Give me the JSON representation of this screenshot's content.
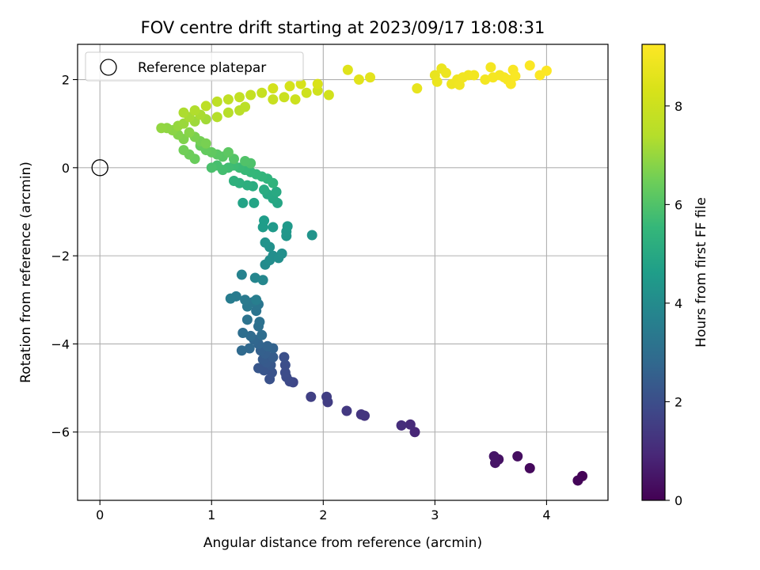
{
  "chart_data": {
    "type": "scatter",
    "title": "FOV centre drift starting at 2023/09/17 18:08:31",
    "xlabel": "Angular distance from reference (arcmin)",
    "ylabel": "Rotation from reference (arcmin)",
    "xlim": [
      -0.2,
      4.55
    ],
    "ylim": [
      -7.55,
      2.8
    ],
    "xticks": [
      0,
      1,
      2,
      3,
      4
    ],
    "yticks": [
      -6,
      -4,
      -2,
      0,
      2
    ],
    "xtick_labels": [
      "0",
      "1",
      "2",
      "3",
      "4"
    ],
    "ytick_labels": [
      "−6",
      "−4",
      "−2",
      "0",
      "2"
    ],
    "grid": true,
    "legend": {
      "location": "upper-left",
      "entries": [
        "Reference platepar"
      ]
    },
    "reference_point": {
      "x": 0,
      "y": 0,
      "label": "Reference platepar"
    },
    "colorbar": {
      "label": "Hours from first FF file",
      "colormap": "viridis",
      "range": [
        0,
        9.25
      ],
      "ticks": [
        0,
        2,
        4,
        6,
        8
      ],
      "tick_labels": [
        "0",
        "2",
        "4",
        "6",
        "8"
      ]
    },
    "points": [
      {
        "x": 4.32,
        "y": -7.0,
        "t": 0.05
      },
      {
        "x": 4.28,
        "y": -7.1,
        "t": 0.1
      },
      {
        "x": 3.85,
        "y": -6.82,
        "t": 0.2
      },
      {
        "x": 3.74,
        "y": -6.55,
        "t": 0.3
      },
      {
        "x": 3.57,
        "y": -6.62,
        "t": 0.4
      },
      {
        "x": 3.54,
        "y": -6.7,
        "t": 0.45
      },
      {
        "x": 3.53,
        "y": -6.55,
        "t": 0.5
      },
      {
        "x": 2.82,
        "y": -6.0,
        "t": 0.9
      },
      {
        "x": 2.78,
        "y": -5.83,
        "t": 1.0
      },
      {
        "x": 2.7,
        "y": -5.85,
        "t": 1.1
      },
      {
        "x": 2.37,
        "y": -5.63,
        "t": 1.25
      },
      {
        "x": 2.34,
        "y": -5.6,
        "t": 1.3
      },
      {
        "x": 2.21,
        "y": -5.52,
        "t": 1.4
      },
      {
        "x": 2.04,
        "y": -5.32,
        "t": 1.5
      },
      {
        "x": 2.03,
        "y": -5.2,
        "t": 1.55
      },
      {
        "x": 1.89,
        "y": -5.2,
        "t": 1.6
      },
      {
        "x": 1.73,
        "y": -4.87,
        "t": 1.8
      },
      {
        "x": 1.7,
        "y": -4.85,
        "t": 1.85
      },
      {
        "x": 1.67,
        "y": -4.75,
        "t": 1.9
      },
      {
        "x": 1.66,
        "y": -4.65,
        "t": 1.95
      },
      {
        "x": 1.66,
        "y": -4.48,
        "t": 2.0
      },
      {
        "x": 1.65,
        "y": -4.3,
        "t": 2.05
      },
      {
        "x": 1.52,
        "y": -4.8,
        "t": 2.1
      },
      {
        "x": 1.54,
        "y": -4.65,
        "t": 2.15
      },
      {
        "x": 1.47,
        "y": -4.6,
        "t": 2.2
      },
      {
        "x": 1.42,
        "y": -4.55,
        "t": 2.25
      },
      {
        "x": 1.53,
        "y": -4.48,
        "t": 2.3
      },
      {
        "x": 1.49,
        "y": -4.42,
        "t": 2.35
      },
      {
        "x": 1.46,
        "y": -4.35,
        "t": 2.4
      },
      {
        "x": 1.55,
        "y": -4.3,
        "t": 2.45
      },
      {
        "x": 1.48,
        "y": -4.22,
        "t": 2.5
      },
      {
        "x": 1.44,
        "y": -4.15,
        "t": 2.55
      },
      {
        "x": 1.55,
        "y": -4.1,
        "t": 2.6
      },
      {
        "x": 1.5,
        "y": -4.05,
        "t": 2.65
      },
      {
        "x": 1.42,
        "y": -4.0,
        "t": 2.7
      },
      {
        "x": 1.38,
        "y": -3.9,
        "t": 2.75
      },
      {
        "x": 1.34,
        "y": -4.1,
        "t": 2.8
      },
      {
        "x": 1.27,
        "y": -4.15,
        "t": 2.85
      },
      {
        "x": 1.35,
        "y": -3.82,
        "t": 2.9
      },
      {
        "x": 1.45,
        "y": -3.8,
        "t": 2.95
      },
      {
        "x": 1.28,
        "y": -3.75,
        "t": 3.0
      },
      {
        "x": 1.42,
        "y": -3.6,
        "t": 3.05
      },
      {
        "x": 1.43,
        "y": -3.5,
        "t": 3.1
      },
      {
        "x": 1.32,
        "y": -3.45,
        "t": 3.15
      },
      {
        "x": 1.4,
        "y": -3.25,
        "t": 3.2
      },
      {
        "x": 1.42,
        "y": -3.1,
        "t": 3.25
      },
      {
        "x": 1.37,
        "y": -3.05,
        "t": 3.3
      },
      {
        "x": 1.32,
        "y": -3.15,
        "t": 3.35
      },
      {
        "x": 1.3,
        "y": -3.0,
        "t": 3.4
      },
      {
        "x": 1.22,
        "y": -2.92,
        "t": 3.45
      },
      {
        "x": 1.17,
        "y": -2.97,
        "t": 3.5
      },
      {
        "x": 1.4,
        "y": -3.0,
        "t": 3.55
      },
      {
        "x": 1.27,
        "y": -2.43,
        "t": 3.7
      },
      {
        "x": 1.39,
        "y": -2.5,
        "t": 3.8
      },
      {
        "x": 1.46,
        "y": -2.55,
        "t": 3.85
      },
      {
        "x": 1.48,
        "y": -2.2,
        "t": 4.0
      },
      {
        "x": 1.52,
        "y": -2.1,
        "t": 4.05
      },
      {
        "x": 1.55,
        "y": -2.0,
        "t": 4.1
      },
      {
        "x": 1.6,
        "y": -2.05,
        "t": 4.12
      },
      {
        "x": 1.63,
        "y": -1.95,
        "t": 4.15
      },
      {
        "x": 1.52,
        "y": -1.8,
        "t": 4.2
      },
      {
        "x": 1.48,
        "y": -1.7,
        "t": 4.25
      },
      {
        "x": 1.9,
        "y": -1.53,
        "t": 4.3
      },
      {
        "x": 1.67,
        "y": -1.55,
        "t": 4.35
      },
      {
        "x": 1.67,
        "y": -1.45,
        "t": 4.4
      },
      {
        "x": 1.68,
        "y": -1.33,
        "t": 4.45
      },
      {
        "x": 1.55,
        "y": -1.35,
        "t": 4.5
      },
      {
        "x": 1.46,
        "y": -1.35,
        "t": 4.55
      },
      {
        "x": 1.47,
        "y": -1.2,
        "t": 4.6
      },
      {
        "x": 1.28,
        "y": -0.8,
        "t": 4.8
      },
      {
        "x": 1.38,
        "y": -0.8,
        "t": 4.85
      },
      {
        "x": 1.59,
        "y": -0.8,
        "t": 4.9
      },
      {
        "x": 1.55,
        "y": -0.7,
        "t": 4.95
      },
      {
        "x": 1.5,
        "y": -0.6,
        "t": 5.0
      },
      {
        "x": 1.58,
        "y": -0.55,
        "t": 5.05
      },
      {
        "x": 1.47,
        "y": -0.5,
        "t": 5.1
      },
      {
        "x": 1.37,
        "y": -0.42,
        "t": 5.15
      },
      {
        "x": 1.32,
        "y": -0.4,
        "t": 5.2
      },
      {
        "x": 1.25,
        "y": -0.35,
        "t": 5.25
      },
      {
        "x": 1.2,
        "y": -0.3,
        "t": 5.3
      },
      {
        "x": 1.55,
        "y": -0.35,
        "t": 5.35
      },
      {
        "x": 1.5,
        "y": -0.25,
        "t": 5.4
      },
      {
        "x": 1.45,
        "y": -0.2,
        "t": 5.45
      },
      {
        "x": 1.4,
        "y": -0.15,
        "t": 5.5
      },
      {
        "x": 1.35,
        "y": -0.1,
        "t": 5.55
      },
      {
        "x": 1.3,
        "y": -0.05,
        "t": 5.6
      },
      {
        "x": 1.25,
        "y": 0.0,
        "t": 5.65
      },
      {
        "x": 1.2,
        "y": 0.05,
        "t": 5.7
      },
      {
        "x": 1.15,
        "y": 0.0,
        "t": 5.75
      },
      {
        "x": 1.1,
        "y": -0.05,
        "t": 5.8
      },
      {
        "x": 1.05,
        "y": 0.05,
        "t": 5.85
      },
      {
        "x": 1.0,
        "y": 0.0,
        "t": 5.9
      },
      {
        "x": 1.35,
        "y": 0.1,
        "t": 5.95
      },
      {
        "x": 1.3,
        "y": 0.15,
        "t": 6.0
      },
      {
        "x": 1.2,
        "y": 0.2,
        "t": 6.05
      },
      {
        "x": 1.1,
        "y": 0.25,
        "t": 6.1
      },
      {
        "x": 1.05,
        "y": 0.3,
        "t": 6.15
      },
      {
        "x": 1.15,
        "y": 0.35,
        "t": 6.2
      },
      {
        "x": 1.0,
        "y": 0.35,
        "t": 6.25
      },
      {
        "x": 0.95,
        "y": 0.4,
        "t": 6.3
      },
      {
        "x": 0.9,
        "y": 0.5,
        "t": 6.35
      },
      {
        "x": 0.85,
        "y": 0.2,
        "t": 6.4
      },
      {
        "x": 0.8,
        "y": 0.3,
        "t": 6.45
      },
      {
        "x": 0.75,
        "y": 0.4,
        "t": 6.5
      },
      {
        "x": 0.9,
        "y": 0.6,
        "t": 6.55
      },
      {
        "x": 0.95,
        "y": 0.55,
        "t": 6.6
      },
      {
        "x": 0.85,
        "y": 0.7,
        "t": 6.65
      },
      {
        "x": 0.75,
        "y": 0.65,
        "t": 6.7
      },
      {
        "x": 0.7,
        "y": 0.75,
        "t": 6.75
      },
      {
        "x": 0.8,
        "y": 0.8,
        "t": 6.8
      },
      {
        "x": 0.65,
        "y": 0.85,
        "t": 6.85
      },
      {
        "x": 0.6,
        "y": 0.9,
        "t": 6.9
      },
      {
        "x": 0.55,
        "y": 0.9,
        "t": 6.95
      },
      {
        "x": 0.7,
        "y": 0.95,
        "t": 7.0
      },
      {
        "x": 0.75,
        "y": 1.0,
        "t": 7.05
      },
      {
        "x": 0.85,
        "y": 1.05,
        "t": 7.1
      },
      {
        "x": 0.95,
        "y": 1.1,
        "t": 7.15
      },
      {
        "x": 0.8,
        "y": 1.15,
        "t": 7.2
      },
      {
        "x": 0.9,
        "y": 1.2,
        "t": 7.25
      },
      {
        "x": 0.75,
        "y": 1.25,
        "t": 7.3
      },
      {
        "x": 0.85,
        "y": 1.3,
        "t": 7.35
      },
      {
        "x": 1.05,
        "y": 1.15,
        "t": 7.4
      },
      {
        "x": 1.15,
        "y": 1.25,
        "t": 7.45
      },
      {
        "x": 1.25,
        "y": 1.3,
        "t": 7.5
      },
      {
        "x": 1.3,
        "y": 1.38,
        "t": 7.55
      },
      {
        "x": 0.95,
        "y": 1.4,
        "t": 7.6
      },
      {
        "x": 1.05,
        "y": 1.5,
        "t": 7.65
      },
      {
        "x": 1.15,
        "y": 1.55,
        "t": 7.7
      },
      {
        "x": 1.25,
        "y": 1.6,
        "t": 7.75
      },
      {
        "x": 1.35,
        "y": 1.65,
        "t": 7.8
      },
      {
        "x": 1.45,
        "y": 1.7,
        "t": 7.85
      },
      {
        "x": 1.55,
        "y": 1.55,
        "t": 7.9
      },
      {
        "x": 1.65,
        "y": 1.6,
        "t": 7.95
      },
      {
        "x": 1.75,
        "y": 1.55,
        "t": 8.0
      },
      {
        "x": 1.85,
        "y": 1.7,
        "t": 8.05
      },
      {
        "x": 1.95,
        "y": 1.75,
        "t": 8.1
      },
      {
        "x": 2.05,
        "y": 1.65,
        "t": 8.15
      },
      {
        "x": 1.55,
        "y": 1.8,
        "t": 8.2
      },
      {
        "x": 1.7,
        "y": 1.85,
        "t": 8.25
      },
      {
        "x": 1.8,
        "y": 1.9,
        "t": 8.3
      },
      {
        "x": 1.95,
        "y": 1.9,
        "t": 8.35
      },
      {
        "x": 2.22,
        "y": 2.22,
        "t": 8.5
      },
      {
        "x": 2.32,
        "y": 2.0,
        "t": 8.55
      },
      {
        "x": 2.42,
        "y": 2.05,
        "t": 8.6
      },
      {
        "x": 2.84,
        "y": 1.8,
        "t": 8.7
      },
      {
        "x": 3.0,
        "y": 2.1,
        "t": 8.75
      },
      {
        "x": 3.02,
        "y": 1.95,
        "t": 8.8
      },
      {
        "x": 3.06,
        "y": 2.25,
        "t": 8.82
      },
      {
        "x": 3.1,
        "y": 2.15,
        "t": 8.85
      },
      {
        "x": 3.15,
        "y": 1.9,
        "t": 8.88
      },
      {
        "x": 3.2,
        "y": 2.0,
        "t": 8.9
      },
      {
        "x": 3.22,
        "y": 1.88,
        "t": 8.92
      },
      {
        "x": 3.25,
        "y": 2.05,
        "t": 8.94
      },
      {
        "x": 3.3,
        "y": 2.1,
        "t": 8.96
      },
      {
        "x": 3.35,
        "y": 2.1,
        "t": 8.98
      },
      {
        "x": 3.45,
        "y": 2.0,
        "t": 9.0
      },
      {
        "x": 3.5,
        "y": 2.28,
        "t": 9.02
      },
      {
        "x": 3.52,
        "y": 2.05,
        "t": 9.04
      },
      {
        "x": 3.58,
        "y": 2.1,
        "t": 9.06
      },
      {
        "x": 3.62,
        "y": 2.05,
        "t": 9.08
      },
      {
        "x": 3.65,
        "y": 2.0,
        "t": 9.1
      },
      {
        "x": 3.68,
        "y": 1.9,
        "t": 9.12
      },
      {
        "x": 3.7,
        "y": 2.22,
        "t": 9.14
      },
      {
        "x": 3.72,
        "y": 2.08,
        "t": 9.16
      },
      {
        "x": 3.85,
        "y": 2.32,
        "t": 9.18
      },
      {
        "x": 3.94,
        "y": 2.1,
        "t": 9.2
      },
      {
        "x": 4.0,
        "y": 2.2,
        "t": 9.22
      }
    ]
  }
}
